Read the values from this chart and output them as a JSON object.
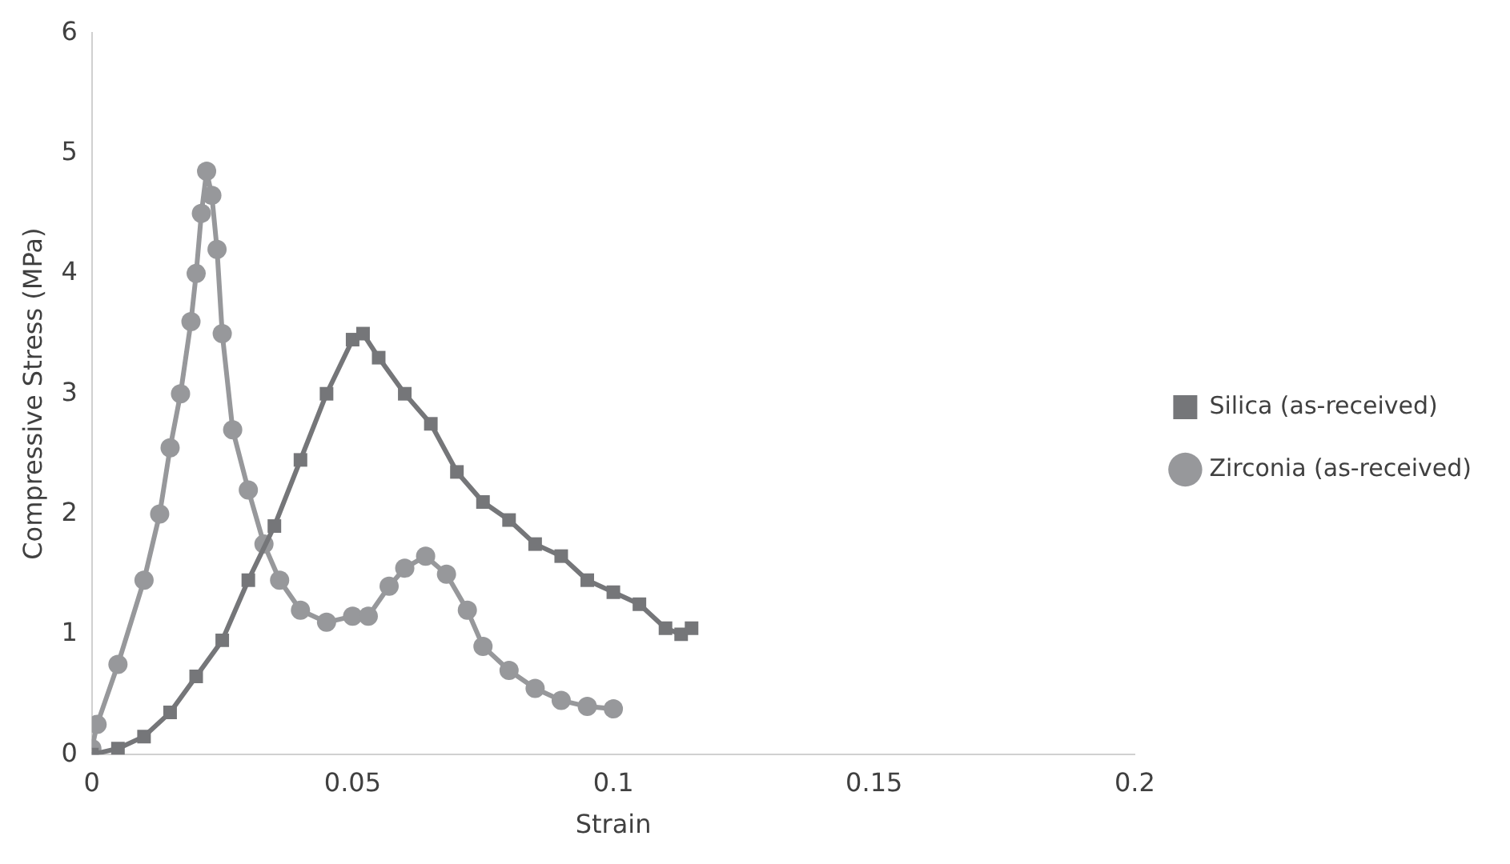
{
  "chart_data": {
    "type": "line",
    "xlabel": "Strain",
    "ylabel": "Compressive Stress (MPa)",
    "xlim": [
      0,
      0.2
    ],
    "xticks": [
      0,
      0.05,
      0.1,
      0.15,
      0.2
    ],
    "ylim": [
      0,
      6
    ],
    "yticks": [
      0,
      1,
      2,
      3,
      4,
      5,
      6
    ],
    "grid": false,
    "legend": "right",
    "series": [
      {
        "name": "Silica (as-received)",
        "color": "#757679",
        "marker": "square",
        "x": [
          0,
          0.005,
          0.01,
          0.015,
          0.02,
          0.025,
          0.03,
          0.035,
          0.04,
          0.045,
          0.05,
          0.052,
          0.055,
          0.06,
          0.065,
          0.07,
          0.075,
          0.08,
          0.085,
          0.09,
          0.095,
          0.1,
          0.105,
          0.11,
          0.113,
          0.115
        ],
        "values": [
          0,
          0.05,
          0.15,
          0.35,
          0.65,
          0.95,
          1.45,
          1.9,
          2.45,
          3.0,
          3.45,
          3.5,
          3.3,
          3.0,
          2.75,
          2.35,
          2.1,
          1.95,
          1.75,
          1.65,
          1.45,
          1.35,
          1.25,
          1.05,
          1.0,
          1.05
        ]
      },
      {
        "name": "Zirconia (as-received)",
        "color": "#97989b",
        "marker": "circle",
        "x": [
          0,
          0.001,
          0.005,
          0.01,
          0.013,
          0.015,
          0.017,
          0.019,
          0.02,
          0.021,
          0.022,
          0.023,
          0.024,
          0.025,
          0.027,
          0.03,
          0.033,
          0.036,
          0.04,
          0.045,
          0.05,
          0.053,
          0.057,
          0.06,
          0.064,
          0.068,
          0.072,
          0.075,
          0.08,
          0.085,
          0.09,
          0.095,
          0.1
        ],
        "values": [
          0.05,
          0.25,
          0.75,
          1.45,
          2.0,
          2.55,
          3.0,
          3.6,
          4.0,
          4.5,
          4.85,
          4.65,
          4.2,
          3.5,
          2.7,
          2.2,
          1.75,
          1.45,
          1.2,
          1.1,
          1.15,
          1.15,
          1.4,
          1.55,
          1.65,
          1.5,
          1.2,
          0.9,
          0.7,
          0.55,
          0.45,
          0.4,
          0.38
        ]
      }
    ]
  }
}
